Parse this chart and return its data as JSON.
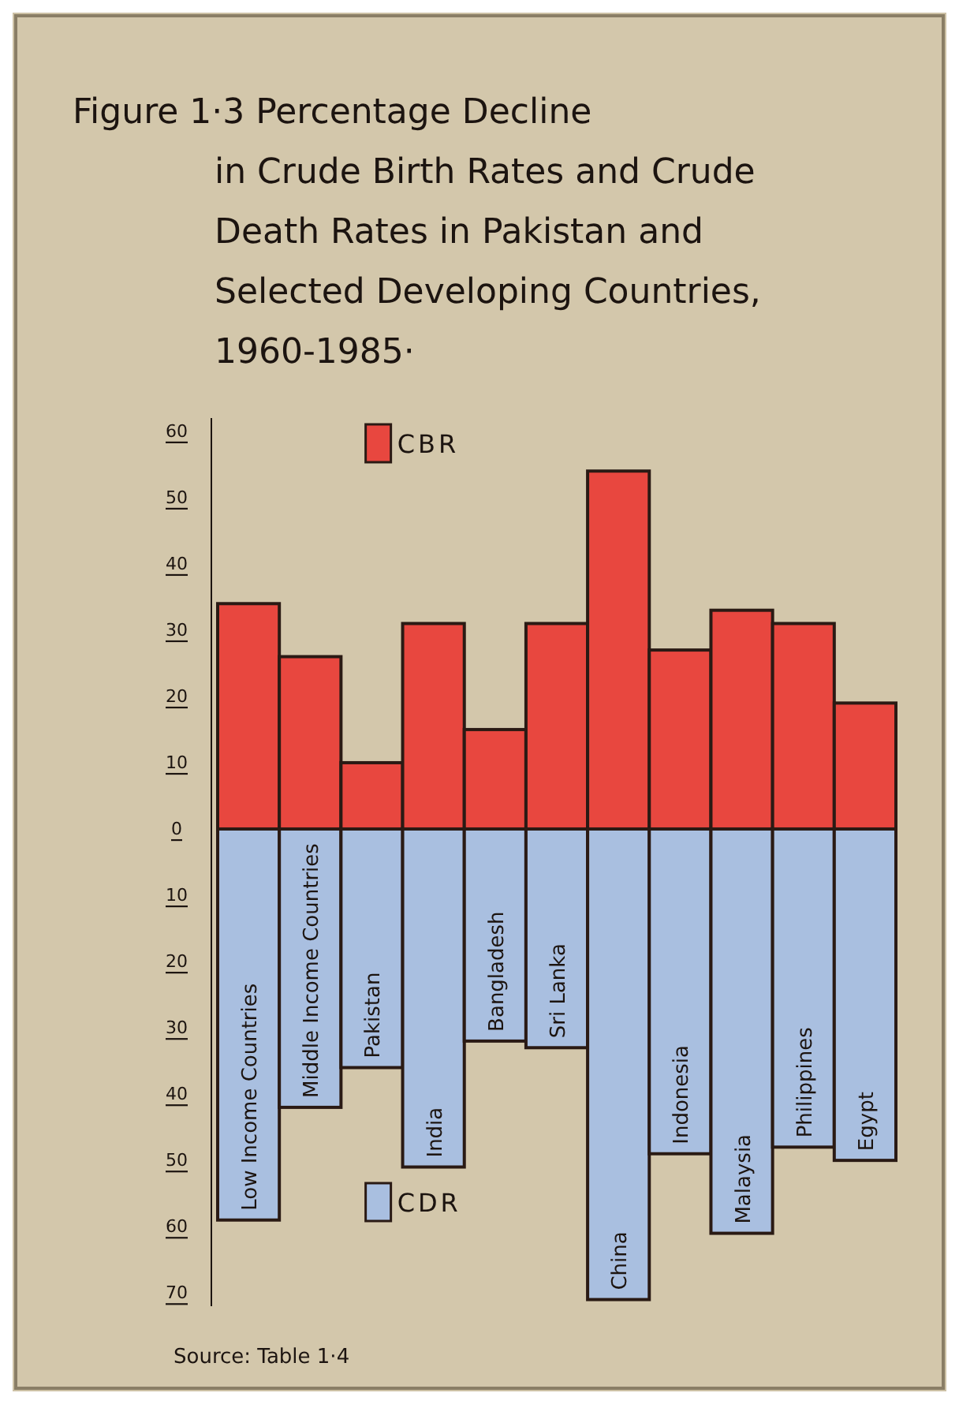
{
  "chart_data": {
    "type": "bar",
    "title": "Figure 1·3 Percentage Decline in Crude Birth Rates and Crude Death Rates in Pakistan and Selected Developing Countries, 1960-1985·",
    "categories": [
      "Low Income Countries",
      "Middle Income Countries",
      "Pakistan",
      "India",
      "Bangladesh",
      "Sri Lanka",
      "China",
      "Indonesia",
      "Malaysia",
      "Philippines",
      "Egypt"
    ],
    "series": [
      {
        "name": "CBR",
        "color": "#e8473f",
        "values": [
          34,
          26,
          10,
          31,
          15,
          31,
          54,
          27,
          33,
          31,
          19
        ]
      },
      {
        "name": "CDR",
        "color": "#a9bfe0",
        "values": [
          -59,
          -42,
          -36,
          -51,
          -32,
          -33,
          -71,
          -49,
          -61,
          -48,
          -50
        ]
      }
    ],
    "stacked": true,
    "legend": "top left",
    "ylim": [
      -72,
      62
    ],
    "yticks": [
      {
        "value": -70,
        "label": "70"
      },
      {
        "value": -60,
        "label": "60"
      },
      {
        "value": -50,
        "label": "50"
      },
      {
        "value": -40,
        "label": "40"
      },
      {
        "value": -30,
        "label": "30"
      },
      {
        "value": -20,
        "label": "20"
      },
      {
        "value": -10,
        "label": "10"
      },
      0,
      10,
      20,
      30,
      40,
      50,
      60
    ],
    "annotations": [
      "Source: Table 1·4"
    ]
  }
}
